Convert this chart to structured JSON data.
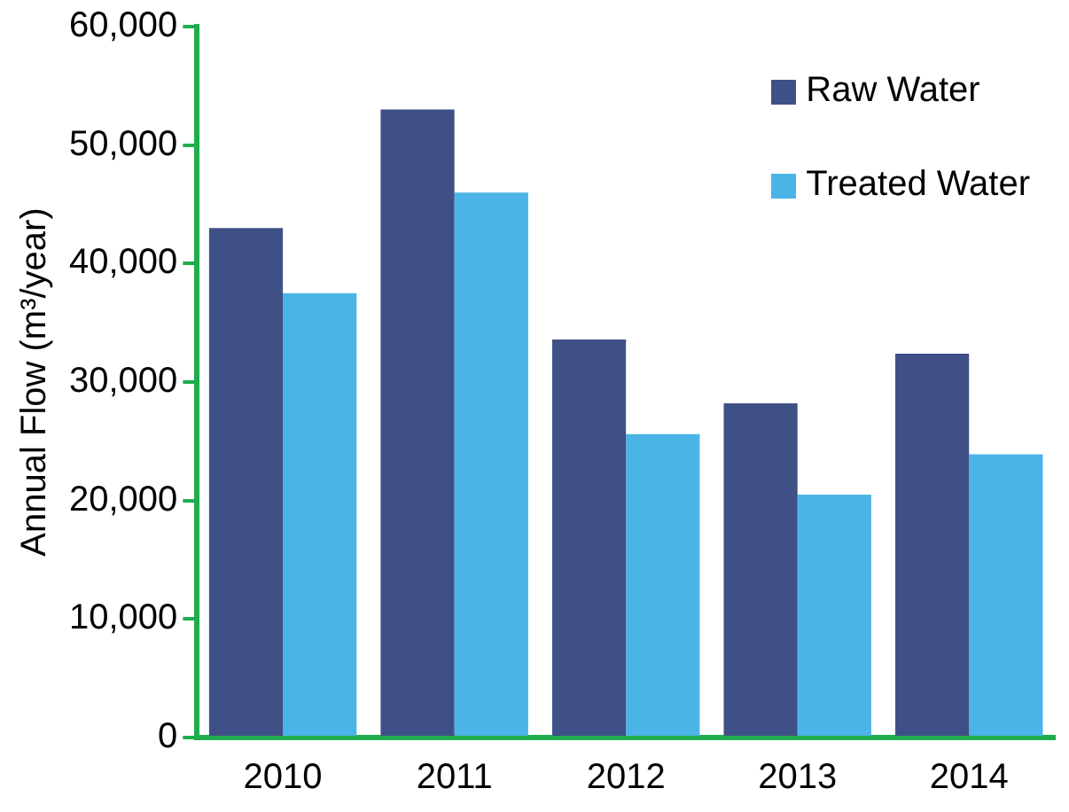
{
  "chart_data": {
    "type": "bar",
    "ylabel": "Annual Flow (m³/year)",
    "categories": [
      "2010",
      "2011",
      "2012",
      "2013",
      "2014"
    ],
    "series": [
      {
        "name": "Raw Water",
        "color": "#3f5086",
        "values": [
          43000,
          53000,
          33600,
          28200,
          32400
        ]
      },
      {
        "name": "Treated Water",
        "color": "#4bb4e6",
        "values": [
          37500,
          46000,
          25600,
          20500,
          23900
        ]
      }
    ],
    "ylim": [
      0,
      60000
    ],
    "yticks": [
      {
        "value": 0,
        "label": "0"
      },
      {
        "value": 10000,
        "label": "10,000"
      },
      {
        "value": 20000,
        "label": "20,000"
      },
      {
        "value": 30000,
        "label": "30,000"
      },
      {
        "value": 40000,
        "label": "40,000"
      },
      {
        "value": 50000,
        "label": "50,000"
      },
      {
        "value": 60000,
        "label": "60,000"
      }
    ],
    "grid": false,
    "legend": "top right"
  }
}
